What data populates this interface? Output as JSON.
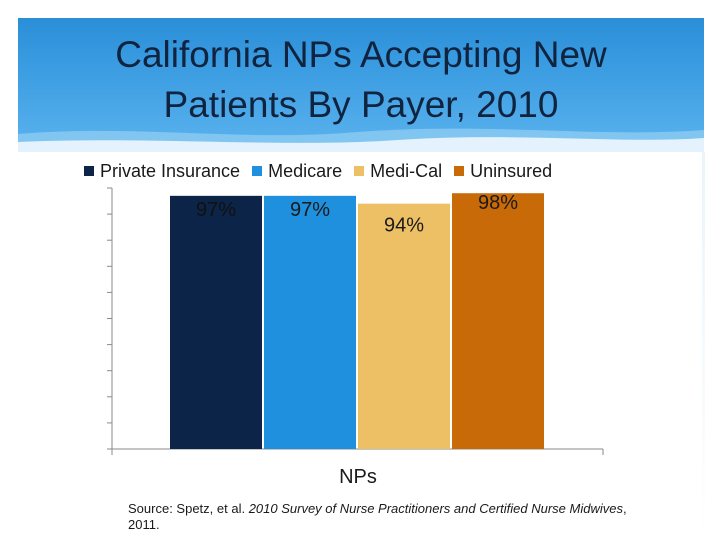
{
  "slide": {
    "title_line1": "California NPs Accepting New",
    "title_line2": "Patients By Payer, 2010",
    "source_prefix": "Source: Spetz, et al. ",
    "source_italic": "2010 Survey of Nurse Practitioners and Certified Nurse Midwives",
    "source_suffix": ", 2011."
  },
  "colors": {
    "header": "#3f9fe3",
    "private_insurance": "#0c2447",
    "medicare": "#1e90dd",
    "medi_cal": "#eec066",
    "uninsured": "#c86a08"
  },
  "chart_data": {
    "type": "bar",
    "xlabel": "NPs",
    "ylabel": "",
    "categories": [
      "NPs"
    ],
    "series": [
      {
        "name": "Private Insurance",
        "values": [
          97
        ],
        "label": "97%",
        "color": "#0c2447"
      },
      {
        "name": "Medicare",
        "values": [
          97
        ],
        "label": "97%",
        "color": "#1e90dd"
      },
      {
        "name": "Medi-Cal",
        "values": [
          94
        ],
        "label": "94%",
        "color": "#eec066"
      },
      {
        "name": "Uninsured",
        "values": [
          98
        ],
        "label": "98%",
        "color": "#c86a08"
      }
    ],
    "legend_position": "top",
    "grid": false
  }
}
